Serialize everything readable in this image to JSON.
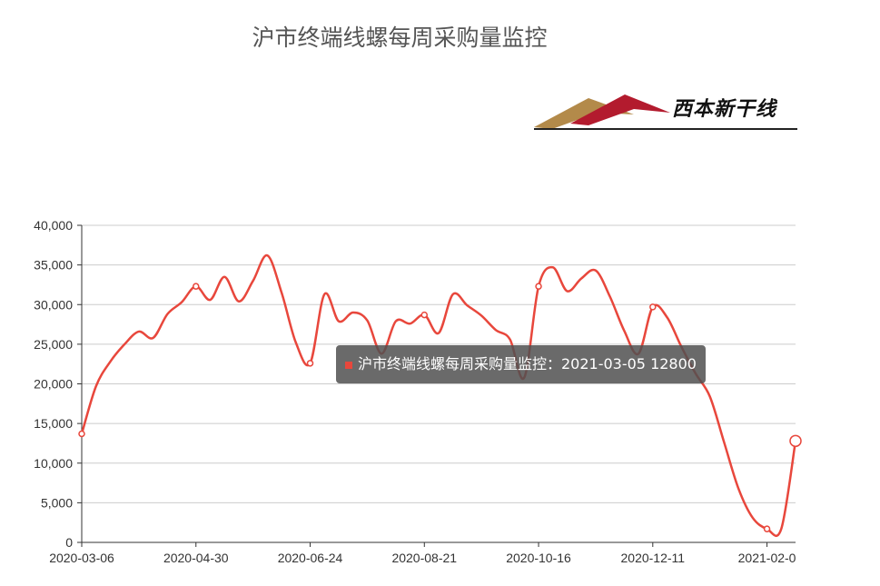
{
  "chart_data": {
    "type": "line",
    "title": "沪市终端线螺每周采购量监控",
    "ylim": [
      0,
      40000
    ],
    "yticks": [
      "0",
      "5,000",
      "10,000",
      "15,000",
      "20,000",
      "25,000",
      "30,000",
      "35,000",
      "40,000"
    ],
    "xtick_labels": [
      "2020-03-06",
      "2020-04-30",
      "2020-06-24",
      "2020-08-21",
      "2020-10-16",
      "2020-12-11",
      "2021-02-0"
    ],
    "color": "#e8473c",
    "grid": true,
    "series": [
      {
        "values": [
          13700,
          19700,
          22800,
          25000,
          26600,
          25800,
          28800,
          30300,
          32300,
          30600,
          33500,
          30400,
          33000,
          36200,
          31500,
          25200,
          22600,
          31300,
          27900,
          29000,
          28000,
          23800,
          27900,
          27600,
          28700,
          26400,
          31300,
          29900,
          28600,
          26800,
          25600,
          20800,
          32300,
          34700,
          31700,
          33300,
          34300,
          31000,
          26700,
          23800,
          29700,
          28400,
          24700,
          21300,
          18400,
          12600,
          6800,
          3100,
          1700,
          1700,
          12800
        ]
      }
    ]
  },
  "tooltip": {
    "text": "沪市终端线螺每周采购量监控：2021-03-05 12800"
  },
  "logo": {
    "text": "西本新干线"
  }
}
